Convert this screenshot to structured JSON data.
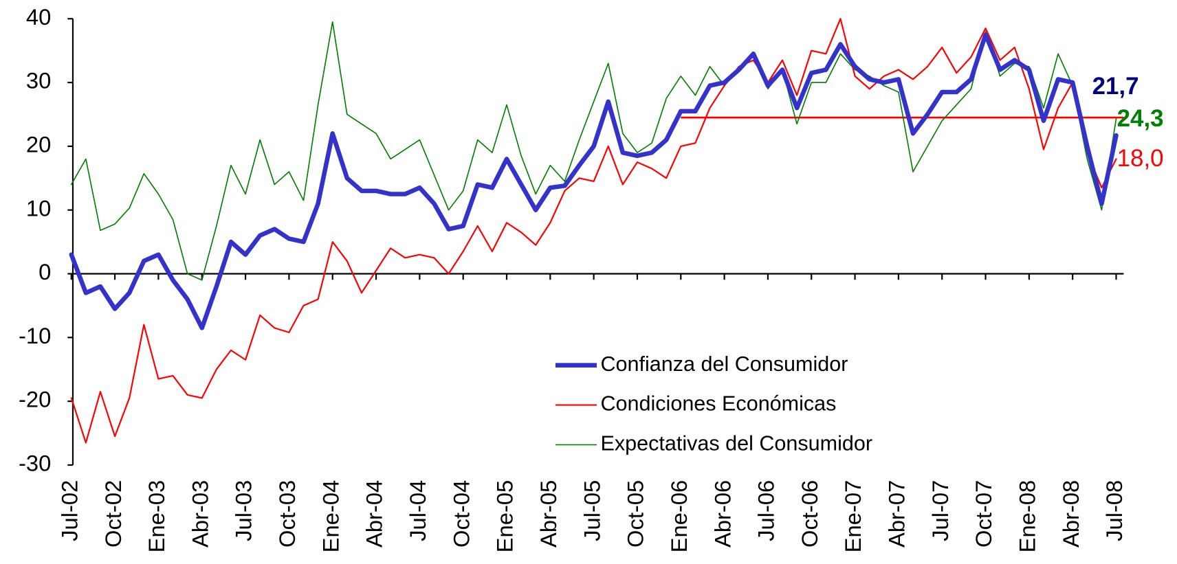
{
  "chart_data": {
    "type": "line",
    "categories": [
      "Jul-02",
      null,
      null,
      "Oct-02",
      null,
      null,
      "Ene-03",
      null,
      null,
      "Abr-03",
      null,
      null,
      "Jul-03",
      null,
      null,
      "Oct-03",
      null,
      null,
      "Ene-04",
      null,
      null,
      "Abr-04",
      null,
      null,
      "Jul-04",
      null,
      null,
      "Oct-04",
      null,
      null,
      "Ene-05",
      null,
      null,
      "Abr-05",
      null,
      null,
      "Jul-05",
      null,
      null,
      "Oct-05",
      null,
      null,
      "Ene-06",
      null,
      null,
      "Abr-06",
      null,
      null,
      "Jul-06",
      null,
      null,
      "Oct-06",
      null,
      null,
      "Ene-07",
      null,
      null,
      "Abr-07",
      null,
      null,
      "Jul-07",
      null,
      null,
      "Oct-07",
      null,
      null,
      "Ene-08",
      null,
      null,
      "Abr-08",
      null,
      null,
      "Jul-08"
    ],
    "series": [
      {
        "name": "Confianza del Consumidor",
        "color": "#3333cc",
        "width": 6,
        "last_label": "21,7",
        "last_label_color": "#000080",
        "last_label_bold": true,
        "values": [
          3,
          -3,
          -2,
          -5.5,
          -3,
          2,
          3,
          -1,
          -4,
          -8.5,
          -2,
          5,
          3,
          6,
          7,
          5.5,
          5,
          11,
          22,
          15,
          13,
          13,
          12.5,
          12.5,
          13.5,
          11,
          7,
          7.5,
          14,
          13.5,
          18,
          14,
          10,
          13.5,
          13.8,
          17,
          20,
          27,
          19,
          18.5,
          19,
          21,
          25.5,
          25.5,
          29.5,
          30,
          32,
          34.5,
          29.5,
          32,
          26,
          31.5,
          32,
          36,
          32.5,
          30.5,
          30,
          30.5,
          22,
          25,
          28.5,
          28.5,
          30.5,
          37.5,
          32,
          33.5,
          32,
          24,
          30.5,
          30,
          20,
          11,
          21.7
        ]
      },
      {
        "name": "Condiciones Económicas",
        "color": "#ff0000",
        "width": 2,
        "last_label": "18,0",
        "last_label_color": "#ff0000",
        "last_label_bold": false,
        "values": [
          -19.5,
          -26.5,
          -18.5,
          -25.5,
          -19.5,
          -8,
          -16.5,
          -16,
          -19,
          -19.5,
          -15,
          -12,
          -13.5,
          -6.5,
          -8.5,
          -9.2,
          -5,
          -4,
          5,
          2,
          -3,
          0.5,
          4,
          2.5,
          3,
          2.5,
          0,
          3.5,
          7.5,
          3.5,
          8,
          6.5,
          4.5,
          8,
          13,
          15,
          14.5,
          20,
          14,
          17.5,
          16.5,
          15,
          20,
          20.5,
          26,
          29.5,
          32.5,
          33.5,
          30,
          33.5,
          28,
          35,
          34.5,
          40,
          31,
          29,
          31,
          32,
          30.5,
          32.5,
          35.5,
          31.5,
          34,
          38.5,
          33.5,
          35.5,
          29,
          19.5,
          26,
          30,
          19,
          13.5,
          18
        ]
      },
      {
        "name": "Expectativas del Consumidor",
        "color": "#008000",
        "width": 1.5,
        "last_label": "24,3",
        "last_label_color": "#008000",
        "last_label_bold": true,
        "values": [
          14,
          18,
          6.8,
          7.8,
          10.3,
          15.7,
          12.5,
          8.5,
          0,
          -1,
          7.5,
          17,
          12.5,
          21,
          14,
          16,
          11.5,
          26.5,
          39.5,
          25,
          23.5,
          22,
          18,
          19.5,
          21,
          15.5,
          10,
          13,
          21,
          19,
          26.5,
          18.5,
          12.5,
          17,
          14.5,
          21,
          27,
          33,
          22,
          19,
          20.5,
          27.5,
          31,
          28,
          32.5,
          29.5,
          32,
          34.5,
          29,
          32,
          23.5,
          30,
          30,
          34.5,
          32,
          31,
          29.5,
          28.5,
          16,
          20,
          24,
          26.5,
          29,
          38,
          31,
          33,
          32.5,
          26,
          34.5,
          29.5,
          18,
          10,
          24.3
        ]
      }
    ],
    "reference_line": {
      "value": 24.5,
      "start_category": "Ene-06",
      "color": "#ff0000"
    },
    "ylim": [
      -30,
      40
    ],
    "yticks": [
      -30,
      -20,
      -10,
      0,
      10,
      20,
      30,
      40
    ],
    "grid": false,
    "legend": "lower right"
  }
}
